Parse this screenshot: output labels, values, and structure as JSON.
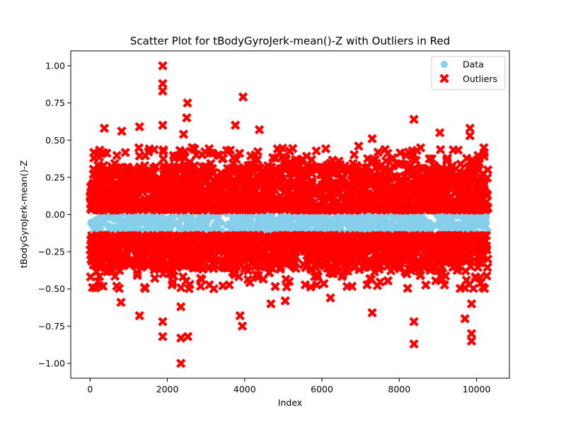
{
  "chart_data": {
    "type": "scatter",
    "title": "Scatter Plot for tBodyGyroJerk-mean()-Z with Outliers in Red",
    "xlabel": "Index",
    "ylabel": "tBodyGyroJerk-mean()-Z",
    "xlim": [
      -500,
      10850
    ],
    "ylim": [
      -1.1,
      1.1
    ],
    "xticks": [
      0,
      2000,
      4000,
      6000,
      8000,
      10000
    ],
    "yticks": [
      -1.0,
      -0.75,
      -0.5,
      -0.25,
      0.0,
      0.25,
      0.5,
      0.75,
      1.0
    ],
    "xtick_labels": [
      "0",
      "2000",
      "4000",
      "6000",
      "8000",
      "10000"
    ],
    "ytick_labels": [
      "−1.00",
      "−0.75",
      "−0.50",
      "−0.25",
      "0.00",
      "0.25",
      "0.50",
      "0.75",
      "1.00"
    ],
    "grid": false,
    "legend_position": "top-right",
    "n_points": 10299,
    "series": [
      {
        "name": "Data",
        "color": "#87ceeb",
        "marker": "circle",
        "x_range": [
          0,
          10299
        ],
        "y_range": [
          -0.13,
          0.02
        ]
      },
      {
        "name": "Outliers",
        "color": "#ff0000",
        "marker": "x",
        "x_range": [
          0,
          10299
        ],
        "y_range_upper": [
          0.03,
          0.33
        ],
        "y_range_lower": [
          -0.36,
          -0.14
        ],
        "extremes": [
          {
            "x": 370,
            "y": 0.58
          },
          {
            "x": 820,
            "y": 0.56
          },
          {
            "x": 1280,
            "y": 0.59
          },
          {
            "x": 1880,
            "y": 1.0
          },
          {
            "x": 1880,
            "y": 0.88
          },
          {
            "x": 1880,
            "y": 0.83
          },
          {
            "x": 1880,
            "y": 0.6
          },
          {
            "x": 2520,
            "y": 0.75
          },
          {
            "x": 2500,
            "y": 0.65
          },
          {
            "x": 2420,
            "y": 0.54
          },
          {
            "x": 3760,
            "y": 0.6
          },
          {
            "x": 3960,
            "y": 0.79
          },
          {
            "x": 4380,
            "y": 0.57
          },
          {
            "x": 6950,
            "y": 0.46
          },
          {
            "x": 7300,
            "y": 0.51
          },
          {
            "x": 8380,
            "y": 0.64
          },
          {
            "x": 9050,
            "y": 0.55
          },
          {
            "x": 9830,
            "y": 0.58
          },
          {
            "x": 9830,
            "y": 0.53
          },
          {
            "x": 1280,
            "y": -0.68
          },
          {
            "x": 1880,
            "y": -0.82
          },
          {
            "x": 1880,
            "y": -0.72
          },
          {
            "x": 2350,
            "y": -1.0
          },
          {
            "x": 2350,
            "y": -0.83
          },
          {
            "x": 2530,
            "y": -0.82
          },
          {
            "x": 2350,
            "y": -0.62
          },
          {
            "x": 3880,
            "y": -0.68
          },
          {
            "x": 3940,
            "y": -0.75
          },
          {
            "x": 4680,
            "y": -0.6
          },
          {
            "x": 6220,
            "y": -0.56
          },
          {
            "x": 7300,
            "y": -0.66
          },
          {
            "x": 8380,
            "y": -0.87
          },
          {
            "x": 8380,
            "y": -0.72
          },
          {
            "x": 9700,
            "y": -0.7
          },
          {
            "x": 9870,
            "y": -0.8
          },
          {
            "x": 9870,
            "y": -0.85
          },
          {
            "x": 9870,
            "y": -0.6
          },
          {
            "x": 800,
            "y": -0.59
          },
          {
            "x": 5050,
            "y": -0.58
          }
        ]
      }
    ]
  }
}
